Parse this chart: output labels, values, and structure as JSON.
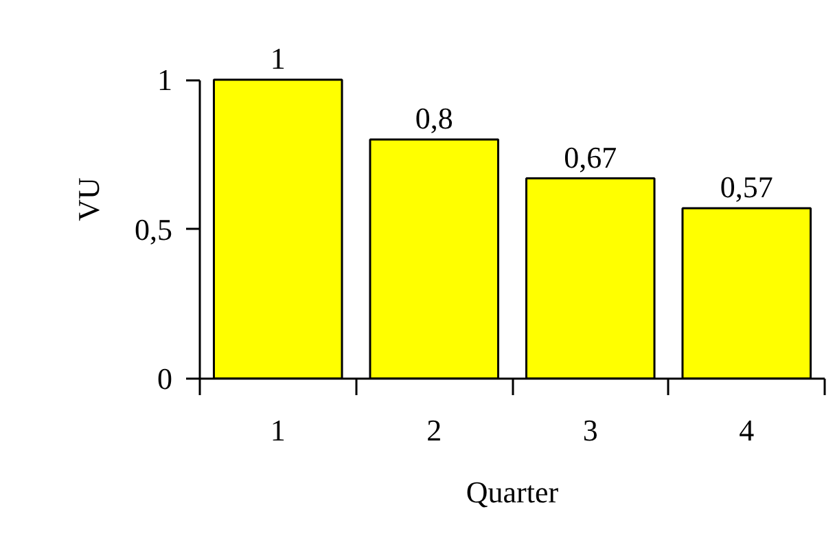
{
  "chart_data": {
    "type": "bar",
    "categories": [
      "1",
      "2",
      "3",
      "4"
    ],
    "values": [
      1,
      0.8,
      0.67,
      0.57
    ],
    "value_labels": [
      "1",
      "0,8",
      "0,67",
      "0,57"
    ],
    "color": "#ffff00",
    "ylim": [
      0,
      1
    ],
    "yticks": [
      0,
      {
        "value": 0.5,
        "label": "0,5"
      },
      1
    ],
    "xlabel": "Quarter",
    "ylabel": "VU"
  }
}
